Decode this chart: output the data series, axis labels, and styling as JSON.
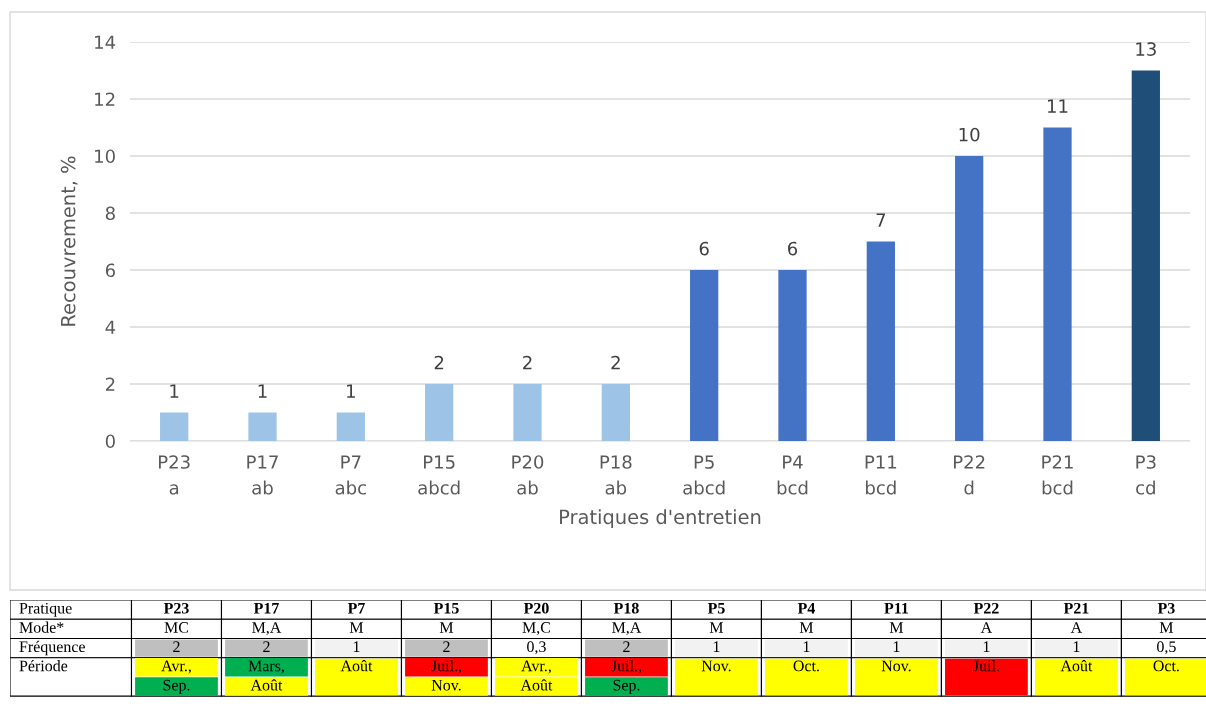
{
  "chart_data": [
    {
      "type": "bar",
      "xlabel": "Pratiques d'entretien",
      "ylabel": "Recouvrement, %",
      "categories": [
        "P23\na",
        "P17\nab",
        "P7\nabc",
        "P15\nabcd",
        "P20\nab",
        "P18\nab",
        "P5\nabcd",
        "P4\nbcd",
        "P11\nbcd",
        "P22\nd",
        "P21\nbcd",
        "P3\ncd"
      ],
      "values": [
        1,
        1,
        1,
        2,
        2,
        2,
        6,
        6,
        7,
        10,
        11,
        13
      ],
      "colors": [
        "#9dc3e6",
        "#9dc3e6",
        "#9dc3e6",
        "#9dc3e6",
        "#9dc3e6",
        "#9dc3e6",
        "#4472c4",
        "#4472c4",
        "#4472c4",
        "#4472c4",
        "#4472c4",
        "#1f4e79"
      ],
      "ylim": [
        0,
        14
      ],
      "yticks": [
        0,
        2,
        4,
        6,
        8,
        10,
        12,
        14
      ],
      "grid": "y",
      "data_labels": true
    },
    {
      "type": "other",
      "y_categories": [
        "Pratique",
        "Mode*",
        "Fréquence",
        "Période"
      ],
      "categories": [
        "P23",
        "P17",
        "P7",
        "P15",
        "P20",
        "P18",
        "P5",
        "P4",
        "P11",
        "P22",
        "P21",
        "P3"
      ],
      "cell_labels": [
        [
          [
            "MC"
          ],
          [
            "M,A"
          ],
          [
            "M"
          ],
          [
            "M"
          ],
          [
            "M,C"
          ],
          [
            "M,A"
          ],
          [
            "M"
          ],
          [
            "M"
          ],
          [
            "M"
          ],
          [
            "A"
          ],
          [
            "A"
          ],
          [
            "M"
          ]
        ],
        [
          [
            "2"
          ],
          [
            "2"
          ],
          [
            "1"
          ],
          [
            "2"
          ],
          [
            "0,3"
          ],
          [
            "2"
          ],
          [
            "1"
          ],
          [
            "1"
          ],
          [
            "1"
          ],
          [
            "1"
          ],
          [
            "1"
          ],
          [
            "0,5"
          ]
        ],
        [
          [
            "Avr.,",
            "Sep."
          ],
          [
            "Mars,",
            "Août"
          ],
          [
            "Août"
          ],
          [
            "Juil.,",
            "Nov."
          ],
          [
            "Avr.,",
            "Août"
          ],
          [
            "Juil.,",
            "Sep."
          ],
          [
            "Nov."
          ],
          [
            "Oct."
          ],
          [
            "Nov."
          ],
          [
            "Juil."
          ],
          [
            "Août"
          ],
          [
            "Oct."
          ]
        ]
      ],
      "colors": [
        [
          [
            "#ffffff"
          ],
          [
            "#ffffff"
          ],
          [
            "#ffffff"
          ],
          [
            "#ffffff"
          ],
          [
            "#ffffff"
          ],
          [
            "#ffffff"
          ],
          [
            "#ffffff"
          ],
          [
            "#ffffff"
          ],
          [
            "#ffffff"
          ],
          [
            "#ffffff"
          ],
          [
            "#ffffff"
          ],
          [
            "#ffffff"
          ]
        ],
        [
          [
            "#bfbfbf"
          ],
          [
            "#bfbfbf"
          ],
          [
            "#f2f2f2"
          ],
          [
            "#bfbfbf"
          ],
          [
            "#ffffff"
          ],
          [
            "#bfbfbf"
          ],
          [
            "#f2f2f2"
          ],
          [
            "#f2f2f2"
          ],
          [
            "#f2f2f2"
          ],
          [
            "#f2f2f2"
          ],
          [
            "#f2f2f2"
          ],
          [
            "#ffffff"
          ]
        ],
        [
          [
            "#ffff00",
            "#00b050"
          ],
          [
            "#00b050",
            "#ffff00"
          ],
          [
            "#ffff00"
          ],
          [
            "#ff0000",
            "#ffff00"
          ],
          [
            "#ffff00",
            "#ffff00"
          ],
          [
            "#ff0000",
            "#00b050"
          ],
          [
            "#ffff00"
          ],
          [
            "#ffff00"
          ],
          [
            "#ffff00"
          ],
          [
            "#ff0000"
          ],
          [
            "#ffff00"
          ],
          [
            "#ffff00"
          ]
        ]
      ]
    }
  ]
}
